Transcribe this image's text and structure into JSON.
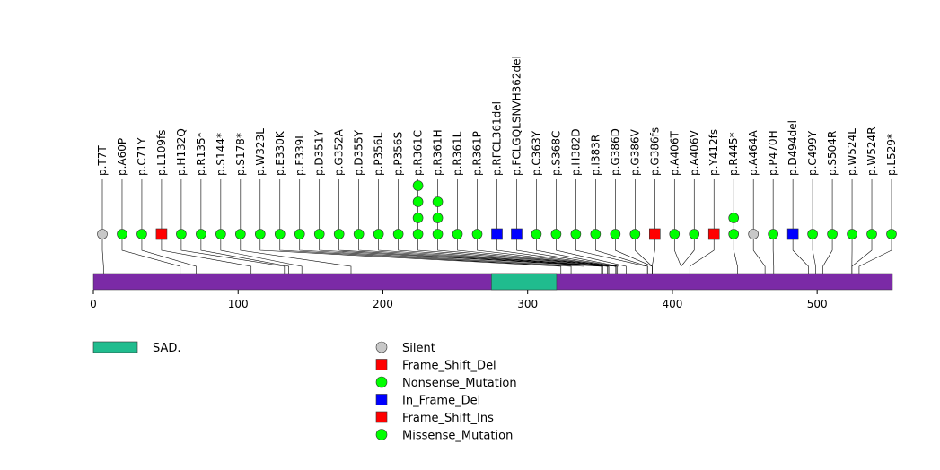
{
  "chart_data": {
    "type": "lollipop",
    "protein_length": 552,
    "axis_ticks": [
      0,
      100,
      200,
      300,
      400,
      500
    ],
    "colors": {
      "protein_bar": "#7b2aa6",
      "domain": "#20bc8e",
      "Silent": "#c8c8c8",
      "Frame_Shift_Del": "#ff0000",
      "Nonsense_Mutation": "#00ff00",
      "In_Frame_Del": "#0000ff",
      "Frame_Shift_Ins": "#ff0000",
      "Missense_Mutation": "#00ff00"
    },
    "domains": [
      {
        "name": "SAD.",
        "start": 275,
        "end": 320
      }
    ],
    "mutations": [
      {
        "label": "p.T7T",
        "position": 7,
        "type": "Silent",
        "count": 1
      },
      {
        "label": "p.A60P",
        "position": 60,
        "type": "Missense_Mutation",
        "count": 1
      },
      {
        "label": "p.C71Y",
        "position": 71,
        "type": "Missense_Mutation",
        "count": 1
      },
      {
        "label": "p.L109fs",
        "position": 109,
        "type": "Frame_Shift_Del",
        "count": 1
      },
      {
        "label": "p.H132Q",
        "position": 132,
        "type": "Missense_Mutation",
        "count": 1
      },
      {
        "label": "p.R135*",
        "position": 135,
        "type": "Nonsense_Mutation",
        "count": 1
      },
      {
        "label": "p.S144*",
        "position": 144,
        "type": "Nonsense_Mutation",
        "count": 1
      },
      {
        "label": "p.S178*",
        "position": 178,
        "type": "Nonsense_Mutation",
        "count": 1
      },
      {
        "label": "p.W323L",
        "position": 323,
        "type": "Missense_Mutation",
        "count": 1
      },
      {
        "label": "p.E330K",
        "position": 330,
        "type": "Missense_Mutation",
        "count": 1
      },
      {
        "label": "p.F339L",
        "position": 339,
        "type": "Missense_Mutation",
        "count": 1
      },
      {
        "label": "p.D351Y",
        "position": 351,
        "type": "Missense_Mutation",
        "count": 1
      },
      {
        "label": "p.G352A",
        "position": 352,
        "type": "Missense_Mutation",
        "count": 1
      },
      {
        "label": "p.D355Y",
        "position": 355,
        "type": "Missense_Mutation",
        "count": 1
      },
      {
        "label": "p.P356L",
        "position": 356,
        "type": "Missense_Mutation",
        "count": 1
      },
      {
        "label": "p.P356S",
        "position": 356,
        "type": "Missense_Mutation",
        "count": 1
      },
      {
        "label": "p.R361C",
        "position": 361,
        "type": "Missense_Mutation",
        "count": 4
      },
      {
        "label": "p.R361H",
        "position": 361,
        "type": "Missense_Mutation",
        "count": 3
      },
      {
        "label": "p.R361L",
        "position": 361,
        "type": "Missense_Mutation",
        "count": 1
      },
      {
        "label": "p.R361P",
        "position": 361,
        "type": "Missense_Mutation",
        "count": 1
      },
      {
        "label": "p.RFCL361del",
        "position": 361,
        "type": "In_Frame_Del",
        "count": 1
      },
      {
        "label": "p.FCLGQLSNVH362del",
        "position": 362,
        "type": "In_Frame_Del",
        "count": 1
      },
      {
        "label": "p.C363Y",
        "position": 363,
        "type": "Missense_Mutation",
        "count": 1
      },
      {
        "label": "p.S368C",
        "position": 368,
        "type": "Missense_Mutation",
        "count": 1
      },
      {
        "label": "p.H382D",
        "position": 382,
        "type": "Missense_Mutation",
        "count": 1
      },
      {
        "label": "p.I383R",
        "position": 383,
        "type": "Missense_Mutation",
        "count": 1
      },
      {
        "label": "p.G386D",
        "position": 386,
        "type": "Missense_Mutation",
        "count": 1
      },
      {
        "label": "p.G386V",
        "position": 386,
        "type": "Missense_Mutation",
        "count": 1
      },
      {
        "label": "p.G386fs",
        "position": 386,
        "type": "Frame_Shift_Del",
        "count": 1
      },
      {
        "label": "p.A406T",
        "position": 406,
        "type": "Missense_Mutation",
        "count": 1
      },
      {
        "label": "p.A406V",
        "position": 406,
        "type": "Missense_Mutation",
        "count": 1
      },
      {
        "label": "p.Y412fs",
        "position": 412,
        "type": "Frame_Shift_Ins",
        "count": 1
      },
      {
        "label": "p.R445*",
        "position": 445,
        "type": "Nonsense_Mutation",
        "count": 2
      },
      {
        "label": "p.A464A",
        "position": 464,
        "type": "Silent",
        "count": 1
      },
      {
        "label": "p.P470H",
        "position": 470,
        "type": "Missense_Mutation",
        "count": 1
      },
      {
        "label": "p.D494del",
        "position": 494,
        "type": "In_Frame_Del",
        "count": 1
      },
      {
        "label": "p.C499Y",
        "position": 499,
        "type": "Missense_Mutation",
        "count": 1
      },
      {
        "label": "p.S504R",
        "position": 504,
        "type": "Missense_Mutation",
        "count": 1
      },
      {
        "label": "p.W524L",
        "position": 524,
        "type": "Missense_Mutation",
        "count": 1
      },
      {
        "label": "p.W524R",
        "position": 524,
        "type": "Missense_Mutation",
        "count": 1
      },
      {
        "label": "p.L529*",
        "position": 529,
        "type": "Nonsense_Mutation",
        "count": 1
      }
    ],
    "legend": {
      "domains": [
        {
          "label": "SAD.",
          "color": "#20bc8e"
        }
      ],
      "mutation_types": [
        {
          "label": "Silent",
          "shape": "circle",
          "color": "#c8c8c8"
        },
        {
          "label": "Frame_Shift_Del",
          "shape": "square",
          "color": "#ff0000"
        },
        {
          "label": "Nonsense_Mutation",
          "shape": "circle",
          "color": "#00ff00"
        },
        {
          "label": "In_Frame_Del",
          "shape": "square",
          "color": "#0000ff"
        },
        {
          "label": "Frame_Shift_Ins",
          "shape": "square",
          "color": "#ff0000"
        },
        {
          "label": "Missense_Mutation",
          "shape": "circle",
          "color": "#00ff00"
        }
      ]
    }
  }
}
